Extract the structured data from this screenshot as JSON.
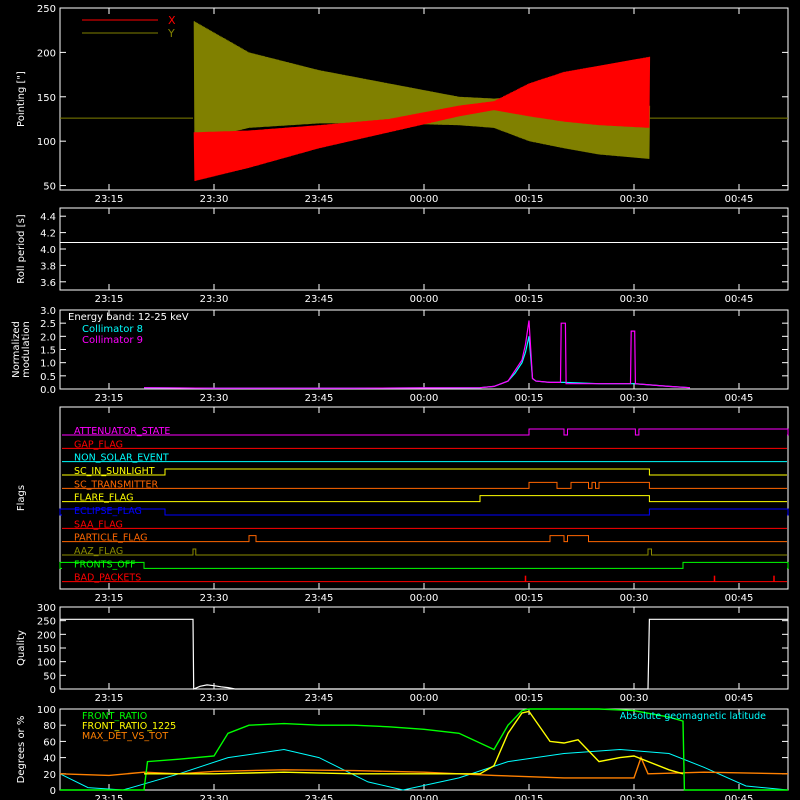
{
  "x_axis": {
    "tick_labels": [
      "23:15",
      "23:30",
      "23:45",
      "00:00",
      "00:15",
      "00:30",
      "00:45"
    ],
    "tick_minutes": [
      15,
      30,
      45,
      60,
      75,
      90,
      105
    ],
    "range_minutes": [
      8,
      112
    ]
  },
  "colors": {
    "frame": "#ffffff",
    "red": "#ff0000",
    "olive": "#808000",
    "cyan": "#00ffff",
    "magenta": "#ff00ff",
    "green": "#00ff00",
    "lime": "#55ff00",
    "orange": "#ff8000",
    "yellow": "#ffff00",
    "blue": "#0000ff",
    "orange_red": "#ff6600",
    "dark_olive": "#8b8b00"
  },
  "chart_data": [
    {
      "type": "line",
      "id": "pointing",
      "ylabel": "Pointing [\"]",
      "ylim": [
        45,
        250
      ],
      "yticks": [
        50,
        100,
        150,
        200,
        250
      ],
      "legend": "top-left",
      "series": [
        {
          "name": "X",
          "color": "#ff0000",
          "envelope": {
            "x": [
              27,
              27.2,
              35,
              45,
              55,
              65,
              70,
              75,
              80,
              85,
              92.2
            ],
            "low": [
              126,
              55,
              70,
              92,
              110,
              128,
              135,
              128,
              122,
              118,
              115
            ],
            "high": [
              126,
              110,
              112,
              118,
              125,
              140,
              145,
              165,
              178,
              185,
              195
            ]
          }
        },
        {
          "name": "Y",
          "color": "#808000",
          "envelope": {
            "x": [
              27,
              27.2,
              35,
              45,
              55,
              65,
              70,
              75,
              80,
              85,
              92.2
            ],
            "low": [
              126,
              100,
              115,
              120,
              120,
              118,
              115,
              100,
              92,
              85,
              80
            ],
            "high": [
              126,
              235,
              200,
              180,
              165,
              150,
              148,
              150,
              147,
              142,
              140
            ]
          }
        }
      ],
      "baseline": {
        "value": 126,
        "x": [
          8,
          27,
          92.2,
          112
        ]
      }
    },
    {
      "type": "line",
      "id": "roll_period",
      "ylabel": "Roll period [s]",
      "ylim": [
        3.5,
        4.5
      ],
      "yticks": [
        3.6,
        3.8,
        4.0,
        4.2,
        4.4
      ],
      "tick_labels": [
        "3.6",
        "3.8",
        "4.0",
        "4.2",
        "4.4"
      ],
      "series": [
        {
          "color": "#ffffff",
          "value": 4.08
        }
      ]
    },
    {
      "type": "line",
      "id": "modulation",
      "ylabel": "Normalized modulation",
      "ylim": [
        0,
        3.0
      ],
      "yticks": [
        0.0,
        0.5,
        1.0,
        1.5,
        2.0,
        2.5,
        3.0
      ],
      "tick_labels": [
        "0.0",
        "0.5",
        "1.0",
        "1.5",
        "2.0",
        "2.5",
        "3.0"
      ],
      "legend_title": "Energy band: 12-25 keV",
      "series": [
        {
          "name": "Collimator 8",
          "color": "#00ffff",
          "x": [
            20,
            30,
            40,
            50,
            60,
            68,
            70,
            72,
            73,
            74,
            74.5,
            75,
            75.5,
            76,
            78,
            80,
            85,
            90,
            95,
            98
          ],
          "y": [
            0.05,
            0.03,
            0.03,
            0.03,
            0.04,
            0.05,
            0.1,
            0.3,
            0.6,
            1.0,
            1.4,
            2.0,
            0.4,
            0.3,
            0.25,
            0.25,
            0.2,
            0.2,
            0.1,
            0.05
          ]
        },
        {
          "name": "Collimator 9",
          "color": "#ff00ff",
          "x": [
            20,
            30,
            40,
            50,
            60,
            68,
            70,
            72,
            73,
            74,
            74.5,
            75,
            75.5,
            76,
            78,
            79.5,
            79.6,
            80.2,
            80.3,
            85,
            89.5,
            89.6,
            90.1,
            90.2,
            95,
            98
          ],
          "y": [
            0.05,
            0.03,
            0.03,
            0.03,
            0.04,
            0.05,
            0.1,
            0.3,
            0.7,
            1.1,
            1.7,
            2.6,
            0.4,
            0.3,
            0.25,
            0.25,
            2.5,
            2.5,
            0.2,
            0.2,
            0.2,
            2.2,
            2.2,
            0.2,
            0.1,
            0.05
          ]
        }
      ]
    },
    {
      "type": "line",
      "id": "flags",
      "ylabel": "Flags",
      "flags": [
        {
          "label": "ATTENUATOR_STATE",
          "color": "#ff00ff",
          "on": [
            [
              75,
              80
            ],
            [
              80.5,
              90.2
            ],
            [
              90.7,
              112
            ]
          ],
          "spikes": []
        },
        {
          "label": "GAP_FLAG",
          "color": "#ff0000",
          "on": [],
          "spikes": []
        },
        {
          "label": "NON_SOLAR_EVENT",
          "color": "#00ffff",
          "on": [],
          "spikes": []
        },
        {
          "label": "SC_IN_SUNLIGHT",
          "color": "#ffff00",
          "on": [
            [
              23,
              92.2
            ]
          ],
          "spikes": []
        },
        {
          "label": "SC_TRANSMITTER",
          "color": "#ff6600",
          "on": [
            [
              75,
              79
            ],
            [
              81,
              83.5
            ],
            [
              84,
              84.5
            ],
            [
              85,
              92.2
            ]
          ],
          "spikes": []
        },
        {
          "label": "FLARE_FLAG",
          "color": "#ffff00",
          "on": [
            [
              68,
              92.2
            ]
          ],
          "spikes": []
        },
        {
          "label": "ECLIPSE_FLAG",
          "color": "#0000ff",
          "on": [
            [
              8,
              23
            ],
            [
              92.2,
              112
            ]
          ],
          "spikes": []
        },
        {
          "label": "SAA_FLAG",
          "color": "#ff0000",
          "on": [],
          "spikes": []
        },
        {
          "label": "PARTICLE_FLAG",
          "color": "#ff6600",
          "on": [
            [
              35,
              36
            ],
            [
              78,
              80
            ],
            [
              80.5,
              83.5
            ]
          ],
          "spikes": []
        },
        {
          "label": "AAZ_FLAG",
          "color": "#8b8b00",
          "on": [
            [
              27,
              27.4
            ],
            [
              92,
              92.5
            ]
          ],
          "spikes": []
        },
        {
          "label": "FRONTS_OFF",
          "color": "#00ff00",
          "on": [
            [
              8,
              20
            ],
            [
              97,
              112
            ]
          ],
          "spikes": []
        },
        {
          "label": "BAD_PACKETS",
          "color": "#ff0000",
          "on": [],
          "spikes": [
            74.5,
            101.5,
            110
          ]
        }
      ]
    },
    {
      "type": "line",
      "id": "quality",
      "ylabel": "Quality",
      "ylim": [
        0,
        300
      ],
      "yticks": [
        0,
        50,
        100,
        150,
        200,
        250,
        300
      ],
      "series": [
        {
          "color": "#ffffff",
          "x": [
            8,
            27,
            27.1,
            28,
            29,
            30,
            31,
            32,
            33,
            92,
            92.2,
            92.3,
            112
          ],
          "y": [
            255,
            255,
            0,
            10,
            15,
            12,
            8,
            5,
            0,
            0,
            255,
            255,
            255
          ]
        }
      ]
    },
    {
      "type": "line",
      "id": "degrees",
      "ylabel": "Degrees or %",
      "ylim": [
        0,
        100
      ],
      "yticks": [
        0,
        20,
        40,
        60,
        80,
        100
      ],
      "series": [
        {
          "name": "FRONT_RATIO",
          "color": "#00ff00",
          "x": [
            8,
            20,
            20.5,
            25,
            30,
            32,
            35,
            40,
            45,
            50,
            55,
            60,
            65,
            70,
            72,
            74,
            75,
            80,
            85,
            90,
            95,
            97,
            97.2,
            112
          ],
          "y": [
            0,
            0,
            35,
            38,
            42,
            70,
            80,
            82,
            80,
            80,
            78,
            75,
            70,
            50,
            80,
            98,
            100,
            100,
            100,
            98,
            90,
            85,
            0,
            0
          ]
        },
        {
          "name": "FRONT_RATIO_1225",
          "color": "#ffff00",
          "x": [
            20,
            30,
            40,
            50,
            60,
            68,
            70,
            72,
            74,
            75,
            78,
            80,
            82,
            85,
            88,
            90,
            95,
            97
          ],
          "y": [
            20,
            20,
            22,
            20,
            20,
            20,
            30,
            70,
            95,
            97,
            60,
            58,
            62,
            35,
            40,
            42,
            25,
            20
          ]
        },
        {
          "name": "MAX_DET_VS_TOT",
          "color": "#ff8000",
          "x": [
            8,
            15,
            20,
            25,
            30,
            40,
            50,
            60,
            70,
            80,
            90,
            91,
            92,
            100,
            112
          ],
          "y": [
            20,
            18,
            22,
            20,
            23,
            25,
            24,
            22,
            18,
            15,
            15,
            40,
            20,
            22,
            20
          ]
        },
        {
          "name": "Absolute geomagnetic latitude",
          "color": "#00ffff",
          "x": [
            8,
            12,
            17,
            25,
            32,
            40,
            45,
            52,
            57,
            65,
            72,
            80,
            88,
            95,
            100,
            106,
            112
          ],
          "y": [
            20,
            3,
            0,
            20,
            40,
            50,
            40,
            10,
            0,
            15,
            35,
            45,
            50,
            45,
            28,
            5,
            0
          ]
        }
      ]
    }
  ]
}
